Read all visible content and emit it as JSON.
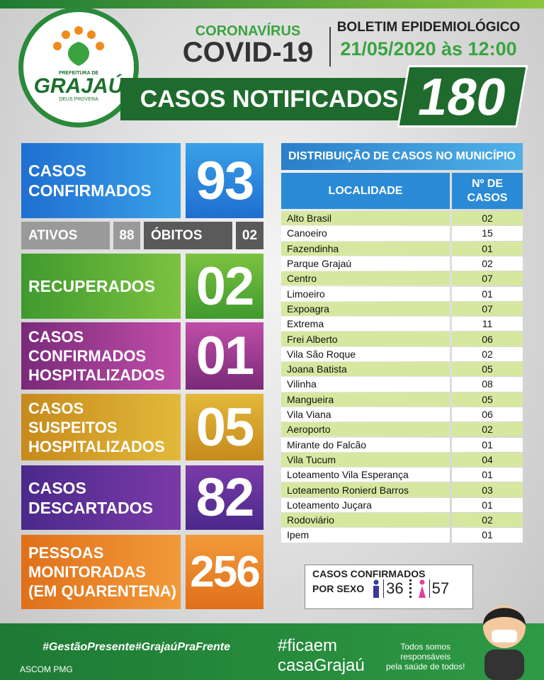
{
  "header": {
    "logo_top": "PREFEITURA DE",
    "logo_name": "GRAJAÚ",
    "logo_motto": "DEUS PROVERA",
    "kicker": "CORONAVÍRUS",
    "title": "COVID-19",
    "bulletin": "BOLETIM EPIDEMIOLÓGICO",
    "date": "21/05/2020 às 12:00",
    "notified_label": "CASOS NOTIFICADOS",
    "notified_value": "180"
  },
  "boxes": [
    {
      "label": [
        "CASOS",
        "CONFIRMADOS"
      ],
      "value": "93"
    },
    {
      "label": [
        "RECUPERADOS"
      ],
      "value": "02"
    },
    {
      "label": [
        "CASOS",
        "CONFIRMADOS",
        "HOSPITALIZADOS"
      ],
      "value": "01"
    },
    {
      "label": [
        "CASOS",
        "SUSPEITOS",
        "HOSPITALIZADOS"
      ],
      "value": "05"
    },
    {
      "label": [
        "CASOS",
        "DESCARTADOS"
      ],
      "value": "82"
    },
    {
      "label": [
        "PESSOAS",
        "MONITORADAS",
        "(EM QUARENTENA)"
      ],
      "value": "256"
    }
  ],
  "status": {
    "active_label": "ATIVOS",
    "active_value": "88",
    "deaths_label": "ÓBITOS",
    "deaths_value": "02"
  },
  "table": {
    "title": "DISTRIBUIÇÃO DE CASOS NO MUNICÍPIO",
    "headers": [
      "LOCALIDADE",
      [
        "Nº DE",
        "CASOS"
      ]
    ],
    "rows": [
      [
        "Alto Brasil",
        "02"
      ],
      [
        "Canoeiro",
        "15"
      ],
      [
        "Fazendinha",
        "01"
      ],
      [
        "Parque Grajaú",
        "02"
      ],
      [
        "Centro",
        "07"
      ],
      [
        "Limoeiro",
        "01"
      ],
      [
        "Expoagra",
        "07"
      ],
      [
        "Extrema",
        "11"
      ],
      [
        "Frei Alberto",
        "06"
      ],
      [
        "Vila São Roque",
        "02"
      ],
      [
        "Joana Batista",
        "05"
      ],
      [
        "Vilinha",
        "08"
      ],
      [
        "Mangueira",
        "05"
      ],
      [
        "Vila Viana",
        "06"
      ],
      [
        "Aeroporto",
        "02"
      ],
      [
        "Mirante do Falcão",
        "01"
      ],
      [
        "Vila Tucum",
        "04"
      ],
      [
        "Loteamento Vila Esperança",
        "01"
      ],
      [
        "Loteamento Ronierd Barros",
        "03"
      ],
      [
        "Loteamento Juçara",
        "01"
      ],
      [
        "Rodoviário",
        "02"
      ],
      [
        "Ipem",
        "01"
      ]
    ]
  },
  "sex": {
    "label": [
      "CASOS CONFIRMADOS",
      "POR SEXO"
    ],
    "male": "36",
    "female": "57"
  },
  "footer": {
    "hashtags": "#GestãoPresente#GrajaúPraFrente",
    "credit": "ASCOM PMG",
    "campaign_1": "#ficaem",
    "campaign_2": "casaGrajaú",
    "slogan": [
      "Todos somos",
      "responsáveis",
      "pela saúde de todos!"
    ]
  }
}
